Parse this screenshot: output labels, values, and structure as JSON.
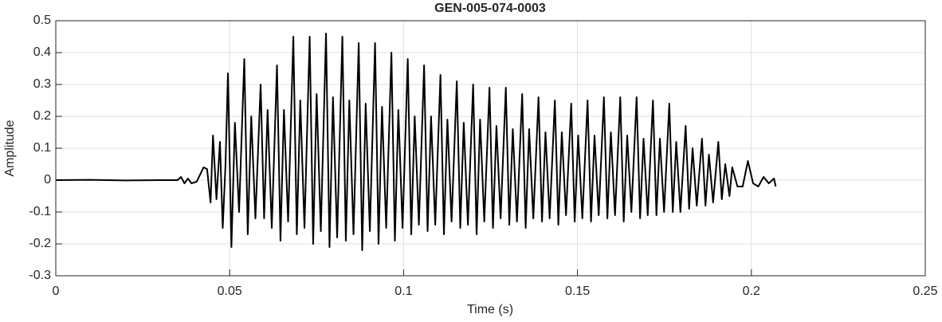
{
  "chart_data": {
    "type": "line",
    "title": "GEN-005-074-0003",
    "x_label": "Time (s)",
    "y_label": "Amplitude",
    "color": "#000000",
    "grid": true,
    "xlim": [
      0,
      0.25
    ],
    "xticks": [
      0,
      0.05,
      0.1,
      0.15,
      0.2,
      0.25
    ],
    "ylim": [
      -0.3,
      0.5
    ],
    "yticks": [
      -0.3,
      -0.2,
      -0.1,
      0,
      0.1,
      0.2,
      0.3,
      0.4,
      0.5
    ],
    "x": [
      0,
      0.01,
      0.02,
      0.03,
      0.035,
      0.036,
      0.037,
      0.038,
      0.039,
      0.0405,
      0.0425,
      0.0435,
      0.0445,
      0.0452,
      0.0462,
      0.0472,
      0.048,
      0.0488,
      0.0495,
      0.0505,
      0.0515,
      0.0527,
      0.0542,
      0.0552,
      0.0562,
      0.0574,
      0.0589,
      0.0599,
      0.0609,
      0.0621,
      0.0636,
      0.0646,
      0.0656,
      0.0668,
      0.0683,
      0.0693,
      0.0703,
      0.0715,
      0.073,
      0.074,
      0.075,
      0.0762,
      0.0777,
      0.0787,
      0.0797,
      0.0809,
      0.0824,
      0.0834,
      0.0844,
      0.0856,
      0.0871,
      0.0881,
      0.0891,
      0.0903,
      0.0918,
      0.0928,
      0.0938,
      0.095,
      0.0965,
      0.0975,
      0.0985,
      0.0997,
      0.1012,
      0.1022,
      0.1032,
      0.1044,
      0.1059,
      0.1069,
      0.1079,
      0.1091,
      0.1106,
      0.1116,
      0.1126,
      0.1138,
      0.1153,
      0.1163,
      0.1173,
      0.1185,
      0.12,
      0.121,
      0.122,
      0.1232,
      0.1247,
      0.1257,
      0.1267,
      0.1279,
      0.1294,
      0.1304,
      0.1314,
      0.1326,
      0.1341,
      0.1351,
      0.1361,
      0.1373,
      0.1388,
      0.1398,
      0.1408,
      0.142,
      0.1435,
      0.1445,
      0.1455,
      0.1467,
      0.1482,
      0.1492,
      0.1502,
      0.1514,
      0.1529,
      0.1539,
      0.1549,
      0.1561,
      0.1576,
      0.1586,
      0.1596,
      0.1608,
      0.1623,
      0.1633,
      0.1643,
      0.1655,
      0.167,
      0.168,
      0.169,
      0.1702,
      0.1717,
      0.1727,
      0.1737,
      0.1749,
      0.1764,
      0.1774,
      0.1784,
      0.1796,
      0.1811,
      0.1821,
      0.1831,
      0.1843,
      0.1858,
      0.1868,
      0.1878,
      0.189,
      0.1905,
      0.1915,
      0.1925,
      0.1937,
      0.1945,
      0.196,
      0.1975,
      0.199,
      0.2005,
      0.202,
      0.2035,
      0.205,
      0.2065,
      0.207
    ],
    "values": [
      0,
      0.001,
      -0.001,
      0,
      0,
      0.01,
      -0.01,
      0.005,
      -0.01,
      -0.005,
      0.04,
      0.035,
      -0.07,
      0.14,
      -0.06,
      0.12,
      -0.15,
      0.05,
      0.335,
      -0.21,
      0.18,
      -0.1,
      0.38,
      -0.17,
      0.2,
      -0.12,
      0.3,
      -0.12,
      0.22,
      -0.15,
      0.36,
      -0.19,
      0.22,
      -0.13,
      0.45,
      -0.17,
      0.25,
      -0.15,
      0.45,
      -0.2,
      0.27,
      -0.16,
      0.46,
      -0.21,
      0.26,
      -0.18,
      0.45,
      -0.19,
      0.25,
      -0.17,
      0.43,
      -0.22,
      0.24,
      -0.16,
      0.43,
      -0.2,
      0.23,
      -0.15,
      0.4,
      -0.19,
      0.22,
      -0.15,
      0.38,
      -0.17,
      0.2,
      -0.14,
      0.36,
      -0.16,
      0.2,
      -0.14,
      0.33,
      -0.17,
      0.19,
      -0.13,
      0.31,
      -0.15,
      0.18,
      -0.14,
      0.3,
      -0.17,
      0.19,
      -0.13,
      0.29,
      -0.15,
      0.17,
      -0.12,
      0.29,
      -0.14,
      0.16,
      -0.13,
      0.27,
      -0.15,
      0.16,
      -0.12,
      0.26,
      -0.13,
      0.15,
      -0.12,
      0.25,
      -0.14,
      0.15,
      -0.11,
      0.24,
      -0.13,
      0.14,
      -0.12,
      0.25,
      -0.13,
      0.14,
      -0.11,
      0.26,
      -0.12,
      0.15,
      -0.11,
      0.26,
      -0.13,
      0.14,
      -0.1,
      0.26,
      -0.12,
      0.13,
      -0.11,
      0.25,
      -0.11,
      0.13,
      -0.1,
      0.24,
      -0.1,
      0.12,
      -0.1,
      0.17,
      -0.09,
      0.1,
      -0.08,
      0.13,
      -0.08,
      0.08,
      -0.07,
      0.12,
      -0.06,
      0.05,
      -0.05,
      0.04,
      -0.02,
      -0.02,
      0.06,
      -0.01,
      -0.02,
      0.01,
      -0.01,
      0.005,
      -0.02
    ]
  }
}
